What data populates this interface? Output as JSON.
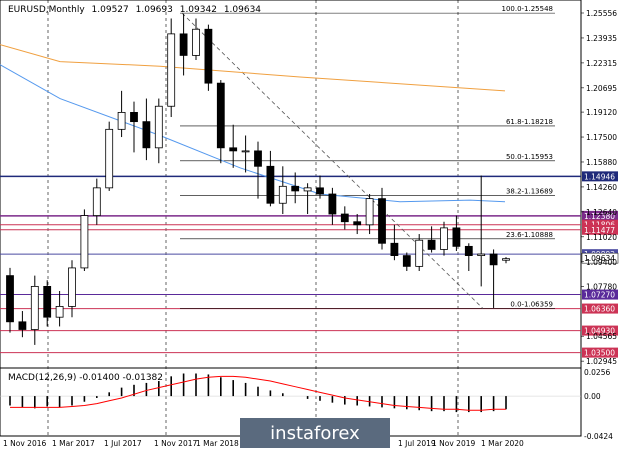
{
  "header": {
    "symbol": "EURUSD,Monthly",
    "open": "1.09527",
    "high": "1.09693",
    "low": "1.09342",
    "close": "1.09634"
  },
  "price_axis": {
    "ticks": [
      "1.25556",
      "1.23935",
      "1.22315",
      "1.20695",
      "1.19120",
      "1.17500",
      "1.15880",
      "1.14260",
      "1.12640",
      "1.11020",
      "1.09400",
      "1.07780",
      "1.04565",
      "1.02945"
    ]
  },
  "levels": [
    {
      "label": "1.14946",
      "color": "#1f2a7a",
      "kind": "line"
    },
    {
      "label": "1.12380",
      "color": "#7b2a8a",
      "kind": "line"
    },
    {
      "label": "1.11806",
      "color": "#cc3355",
      "kind": "line"
    },
    {
      "label": "1.11477",
      "color": "#cc3355",
      "kind": "line"
    },
    {
      "label": "1.09892",
      "color": "#4a4aa0",
      "kind": "line"
    },
    {
      "label": "1.07270",
      "color": "#5a2a9a",
      "kind": "line"
    },
    {
      "label": "1.06360",
      "color": "#cc3355",
      "kind": "line"
    },
    {
      "label": "1.04930",
      "color": "#cc3355",
      "kind": "line"
    },
    {
      "label": "1.03500",
      "color": "#cc3355",
      "kind": "line"
    },
    {
      "label": "1.09634",
      "color": "#222222",
      "kind": "current"
    }
  ],
  "fibo": [
    {
      "label": "100.0-1.25548"
    },
    {
      "label": "61.8-1.18218"
    },
    {
      "label": "50.0-1.15953"
    },
    {
      "label": "38.2-1.13689"
    },
    {
      "label": "23.6-1.10888"
    },
    {
      "label": "0.0-1.06359"
    }
  ],
  "macd": {
    "title": "MACD(12,26,9) -0.01400 -0.01382",
    "ticks": [
      "0.0256",
      "0.00",
      "-0.0424"
    ]
  },
  "time_axis": [
    "1 Nov 2016",
    "1 Mar 2017",
    "1 Jul 2017",
    "1 Nov 2017",
    "1 Mar 2018",
    "1 Jul 2019",
    "1 Nov 2019",
    "1 Mar 2020"
  ],
  "watermark": "instaforex",
  "colors": {
    "bull": "#ffffff",
    "bear": "#000000",
    "ma_slow": "#f0a040",
    "ma_fast": "#5599ee",
    "signal": "#ff0000"
  },
  "chart_data": {
    "type": "candlestick",
    "candles": [
      {
        "o": 1.085,
        "h": 1.09,
        "l": 1.048,
        "c": 1.055
      },
      {
        "o": 1.055,
        "h": 1.062,
        "l": 1.045,
        "c": 1.05
      },
      {
        "o": 1.05,
        "h": 1.085,
        "l": 1.04,
        "c": 1.078
      },
      {
        "o": 1.078,
        "h": 1.082,
        "l": 1.052,
        "c": 1.058
      },
      {
        "o": 1.058,
        "h": 1.075,
        "l": 1.052,
        "c": 1.065
      },
      {
        "o": 1.065,
        "h": 1.095,
        "l": 1.058,
        "c": 1.09
      },
      {
        "o": 1.09,
        "h": 1.128,
        "l": 1.088,
        "c": 1.124
      },
      {
        "o": 1.124,
        "h": 1.148,
        "l": 1.118,
        "c": 1.142
      },
      {
        "o": 1.142,
        "h": 1.185,
        "l": 1.14,
        "c": 1.18
      },
      {
        "o": 1.18,
        "h": 1.205,
        "l": 1.175,
        "c": 1.191
      },
      {
        "o": 1.191,
        "h": 1.198,
        "l": 1.165,
        "c": 1.185
      },
      {
        "o": 1.185,
        "h": 1.2,
        "l": 1.16,
        "c": 1.168
      },
      {
        "o": 1.168,
        "h": 1.2,
        "l": 1.158,
        "c": 1.195
      },
      {
        "o": 1.195,
        "h": 1.252,
        "l": 1.188,
        "c": 1.242
      },
      {
        "o": 1.242,
        "h": 1.255,
        "l": 1.215,
        "c": 1.228
      },
      {
        "o": 1.228,
        "h": 1.252,
        "l": 1.225,
        "c": 1.245
      },
      {
        "o": 1.245,
        "h": 1.248,
        "l": 1.205,
        "c": 1.21
      },
      {
        "o": 1.21,
        "h": 1.212,
        "l": 1.158,
        "c": 1.168
      },
      {
        "o": 1.168,
        "h": 1.183,
        "l": 1.155,
        "c": 1.166
      },
      {
        "o": 1.166,
        "h": 1.176,
        "l": 1.152,
        "c": 1.166
      },
      {
        "o": 1.166,
        "h": 1.172,
        "l": 1.135,
        "c": 1.156
      },
      {
        "o": 1.156,
        "h": 1.166,
        "l": 1.13,
        "c": 1.132
      },
      {
        "o": 1.132,
        "h": 1.156,
        "l": 1.125,
        "c": 1.143
      },
      {
        "o": 1.143,
        "h": 1.152,
        "l": 1.132,
        "c": 1.14
      },
      {
        "o": 1.14,
        "h": 1.145,
        "l": 1.125,
        "c": 1.142
      },
      {
        "o": 1.142,
        "h": 1.15,
        "l": 1.135,
        "c": 1.138
      },
      {
        "o": 1.138,
        "h": 1.142,
        "l": 1.118,
        "c": 1.125
      },
      {
        "o": 1.125,
        "h": 1.13,
        "l": 1.115,
        "c": 1.12
      },
      {
        "o": 1.12,
        "h": 1.125,
        "l": 1.112,
        "c": 1.118
      },
      {
        "o": 1.118,
        "h": 1.138,
        "l": 1.112,
        "c": 1.135
      },
      {
        "o": 1.135,
        "h": 1.142,
        "l": 1.102,
        "c": 1.106
      },
      {
        "o": 1.106,
        "h": 1.118,
        "l": 1.095,
        "c": 1.098
      },
      {
        "o": 1.098,
        "h": 1.1,
        "l": 1.088,
        "c": 1.091
      },
      {
        "o": 1.091,
        "h": 1.112,
        "l": 1.088,
        "c": 1.108
      },
      {
        "o": 1.108,
        "h": 1.117,
        "l": 1.1,
        "c": 1.102
      },
      {
        "o": 1.102,
        "h": 1.12,
        "l": 1.098,
        "c": 1.116
      },
      {
        "o": 1.116,
        "h": 1.124,
        "l": 1.101,
        "c": 1.104
      },
      {
        "o": 1.104,
        "h": 1.106,
        "l": 1.088,
        "c": 1.098
      },
      {
        "o": 1.098,
        "h": 1.15,
        "l": 1.078,
        "c": 1.099
      },
      {
        "o": 1.099,
        "h": 1.102,
        "l": 1.064,
        "c": 1.092
      },
      {
        "o": 1.095,
        "h": 1.097,
        "l": 1.093,
        "c": 1.096
      }
    ],
    "macd_histogram": [
      -0.01,
      -0.012,
      -0.013,
      -0.011,
      -0.012,
      -0.01,
      -0.006,
      -0.002,
      0.004,
      0.009,
      0.012,
      0.014,
      0.016,
      0.021,
      0.024,
      0.024,
      0.023,
      0.02,
      0.017,
      0.014,
      0.01,
      0.006,
      0.003,
      0.0,
      -0.003,
      -0.005,
      -0.007,
      -0.009,
      -0.01,
      -0.011,
      -0.012,
      -0.013,
      -0.014,
      -0.015,
      -0.016,
      -0.016,
      -0.017,
      -0.017,
      -0.017,
      -0.016,
      -0.014
    ],
    "macd_signal": [
      -0.012,
      -0.012,
      -0.012,
      -0.012,
      -0.012,
      -0.011,
      -0.01,
      -0.008,
      -0.005,
      -0.002,
      0.002,
      0.006,
      0.009,
      0.012,
      0.015,
      0.018,
      0.02,
      0.021,
      0.021,
      0.02,
      0.018,
      0.016,
      0.013,
      0.01,
      0.007,
      0.004,
      0.001,
      -0.002,
      -0.004,
      -0.006,
      -0.008,
      -0.01,
      -0.011,
      -0.012,
      -0.013,
      -0.014,
      -0.014,
      -0.015,
      -0.015,
      -0.014,
      -0.014
    ],
    "ma_slow": [
      1.22,
      1.221,
      1.222,
      1.222,
      1.223,
      1.223,
      1.223,
      1.223,
      1.222,
      1.221,
      1.22,
      1.219,
      1.218,
      1.217,
      1.216,
      1.215,
      1.214,
      1.213,
      1.212,
      1.211,
      1.21,
      1.209,
      1.208,
      1.207,
      1.206,
      1.205,
      1.204,
      1.203,
      1.202,
      1.201,
      1.2,
      1.199,
      1.198,
      1.197,
      1.196,
      1.195,
      1.194,
      1.193,
      1.192,
      1.191,
      1.19
    ],
    "ma_fast": [
      1.23,
      1.225,
      1.22,
      1.216,
      1.212,
      1.207,
      1.203,
      1.198,
      1.193,
      1.189,
      1.184,
      1.18,
      1.176,
      1.173,
      1.17,
      1.167,
      1.164,
      1.16,
      1.157,
      1.154,
      1.151,
      1.148,
      1.145,
      1.142,
      1.139,
      1.137,
      1.135,
      1.133,
      1.132,
      1.131,
      1.13,
      1.13,
      1.13,
      1.13,
      1.131,
      1.132,
      1.132,
      1.133,
      1.133,
      1.132,
      1.131
    ]
  }
}
